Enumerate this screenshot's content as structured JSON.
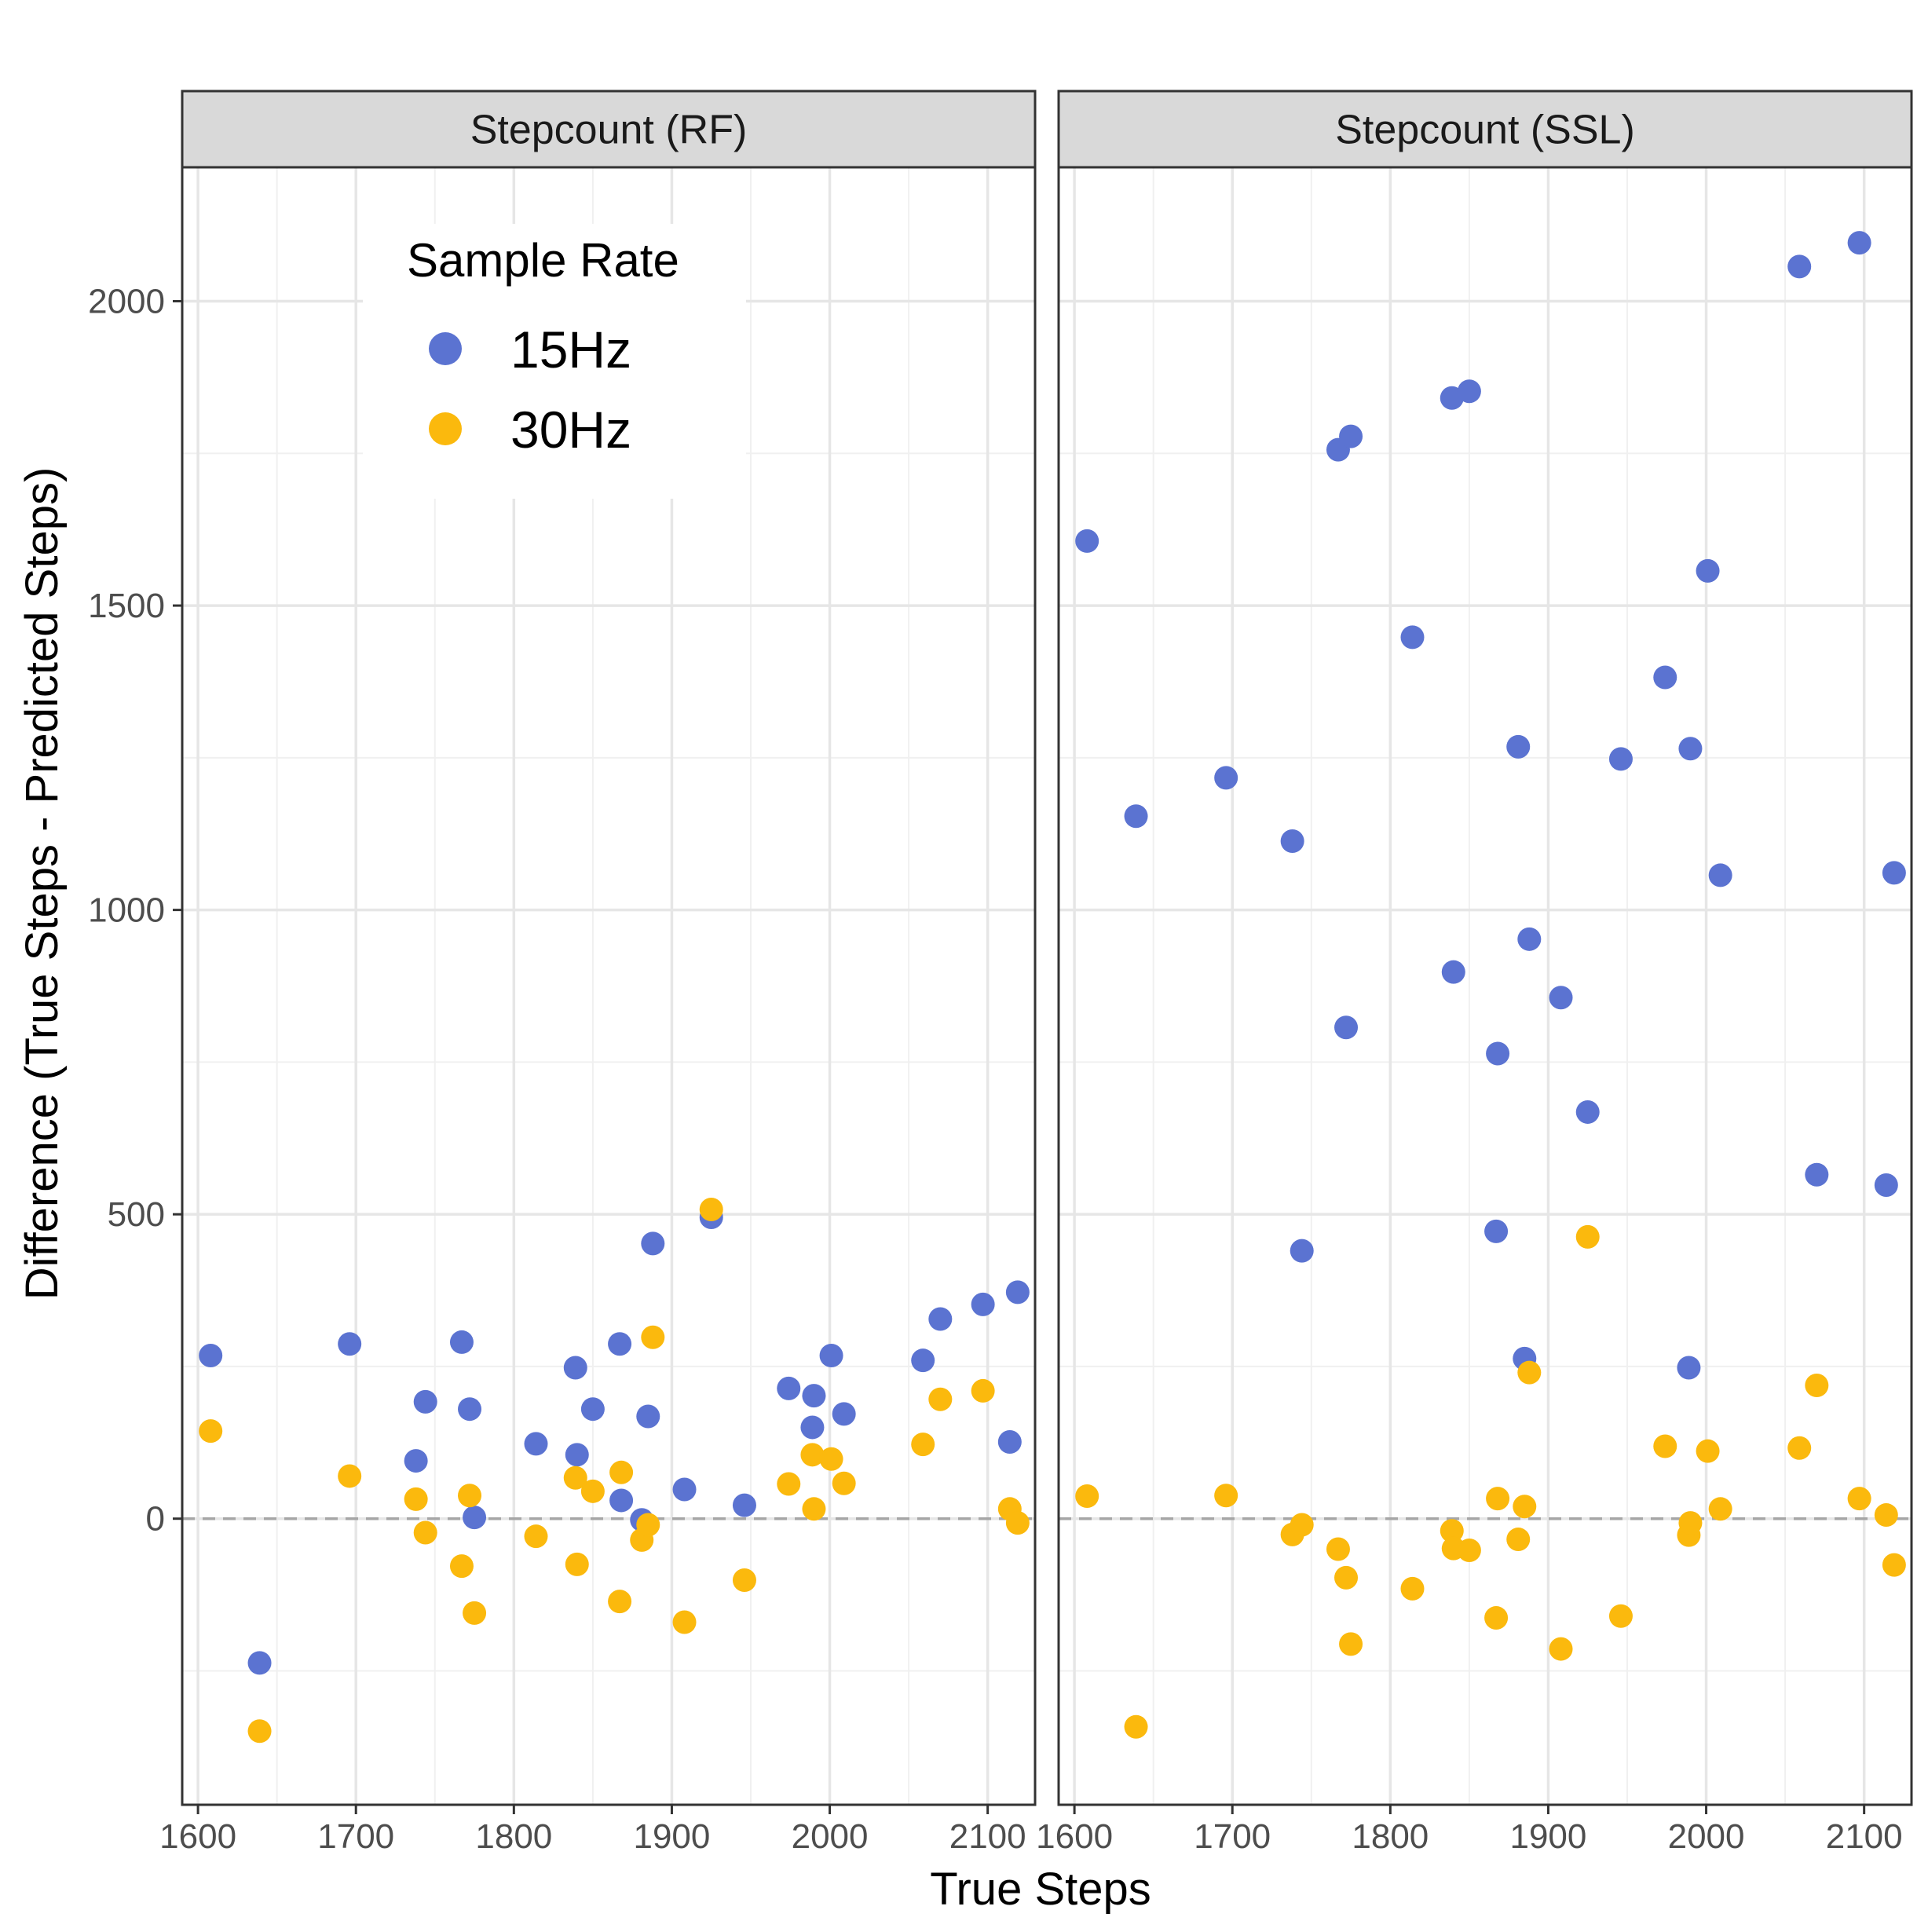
{
  "chart_data": {
    "type": "scatter",
    "xlabel": "True Steps",
    "ylabel": "Difference (True Steps - Predicted Steps)",
    "xlim": [
      1590,
      2130
    ],
    "ylim": [
      -470,
      2220
    ],
    "x_ticks": [
      1600,
      1700,
      1800,
      1900,
      2000,
      2100
    ],
    "y_ticks": [
      0,
      500,
      1000,
      1500,
      2000
    ],
    "grid": true,
    "reference_line": {
      "y": 0,
      "style": "dashed",
      "color": "#a6a6a6"
    },
    "legend": {
      "title": "Sample Rate",
      "placement": "top-left inside first panel",
      "entries": [
        {
          "label": "15Hz",
          "color": "#5b73d1"
        },
        {
          "label": "30Hz",
          "color": "#fbb90d"
        }
      ]
    },
    "panels": [
      {
        "title": "Stepcount (RF)",
        "series": [
          {
            "name": "15Hz",
            "color": "#5b73d1",
            "points": [
              [
                1608,
                268
              ],
              [
                1639,
                -237
              ],
              [
                1696,
                287
              ],
              [
                1738,
                95
              ],
              [
                1744,
                192
              ],
              [
                1767,
                290
              ],
              [
                1772,
                180
              ],
              [
                1775,
                2
              ],
              [
                1814,
                123
              ],
              [
                1839,
                248
              ],
              [
                1840,
                105
              ],
              [
                1850,
                180
              ],
              [
                1867,
                287
              ],
              [
                1868,
                30
              ],
              [
                1881,
                -2
              ],
              [
                1885,
                168
              ],
              [
                1888,
                452
              ],
              [
                1908,
                48
              ],
              [
                1925,
                495
              ],
              [
                1946,
                22
              ],
              [
                1974,
                214
              ],
              [
                1989,
                150
              ],
              [
                1990,
                202
              ],
              [
                2001,
                268
              ],
              [
                2009,
                172
              ],
              [
                2059,
                260
              ],
              [
                2070,
                328
              ],
              [
                2097,
                352
              ],
              [
                2114,
                126
              ],
              [
                2119,
                372
              ]
            ]
          },
          {
            "name": "30Hz",
            "color": "#fbb90d",
            "points": [
              [
                1608,
                144
              ],
              [
                1639,
                -349
              ],
              [
                1696,
                70
              ],
              [
                1738,
                32
              ],
              [
                1744,
                -23
              ],
              [
                1767,
                -78
              ],
              [
                1772,
                38
              ],
              [
                1775,
                -155
              ],
              [
                1814,
                -29
              ],
              [
                1839,
                67
              ],
              [
                1840,
                -75
              ],
              [
                1850,
                45
              ],
              [
                1867,
                -136
              ],
              [
                1868,
                76
              ],
              [
                1881,
                -35
              ],
              [
                1885,
                -10
              ],
              [
                1888,
                298
              ],
              [
                1908,
                -170
              ],
              [
                1925,
                508
              ],
              [
                1946,
                -101
              ],
              [
                1974,
                57
              ],
              [
                1989,
                105
              ],
              [
                1990,
                16
              ],
              [
                2001,
                98
              ],
              [
                2009,
                58
              ],
              [
                2059,
                122
              ],
              [
                2070,
                196
              ],
              [
                2097,
                210
              ],
              [
                2114,
                16
              ],
              [
                2119,
                -7
              ]
            ]
          }
        ]
      },
      {
        "title": "Stepcount (SSL)",
        "series": [
          {
            "name": "15Hz",
            "color": "#5b73d1",
            "points": [
              [
                1608,
                1606
              ],
              [
                1639,
                1154
              ],
              [
                1696,
                1217
              ],
              [
                1738,
                1113
              ],
              [
                1744,
                440
              ],
              [
                1767,
                1756
              ],
              [
                1775,
                1778
              ],
              [
                1772,
                807
              ],
              [
                1814,
                1448
              ],
              [
                1839,
                1841
              ],
              [
                1840,
                898
              ],
              [
                1850,
                1852
              ],
              [
                1867,
                472
              ],
              [
                1868,
                764
              ],
              [
                1881,
                1268
              ],
              [
                1885,
                263
              ],
              [
                1888,
                952
              ],
              [
                1908,
                856
              ],
              [
                1925,
                668
              ],
              [
                1946,
                1248
              ],
              [
                1974,
                1382
              ],
              [
                1989,
                248
              ],
              [
                1990,
                1265
              ],
              [
                2001,
                1557
              ],
              [
                2009,
                1057
              ],
              [
                2059,
                2057
              ],
              [
                2070,
                565
              ],
              [
                2097,
                2096
              ],
              [
                2114,
                548
              ],
              [
                2119,
                1061
              ]
            ]
          },
          {
            "name": "30Hz",
            "color": "#fbb90d",
            "points": [
              [
                1608,
                37
              ],
              [
                1639,
                -342
              ],
              [
                1696,
                38
              ],
              [
                1738,
                -26
              ],
              [
                1744,
                -10
              ],
              [
                1767,
                -50
              ],
              [
                1772,
                -97
              ],
              [
                1775,
                -206
              ],
              [
                1814,
                -115
              ],
              [
                1839,
                -20
              ],
              [
                1840,
                -49
              ],
              [
                1850,
                -52
              ],
              [
                1867,
                -163
              ],
              [
                1868,
                33
              ],
              [
                1881,
                -34
              ],
              [
                1885,
                20
              ],
              [
                1888,
                240
              ],
              [
                1908,
                -214
              ],
              [
                1925,
                463
              ],
              [
                1946,
                -160
              ],
              [
                1974,
                119
              ],
              [
                1989,
                -27
              ],
              [
                1990,
                -7
              ],
              [
                2001,
                111
              ],
              [
                2009,
                16
              ],
              [
                2059,
                116
              ],
              [
                2070,
                219
              ],
              [
                2097,
                33
              ],
              [
                2114,
                6
              ],
              [
                2119,
                -76
              ]
            ]
          }
        ]
      }
    ]
  }
}
